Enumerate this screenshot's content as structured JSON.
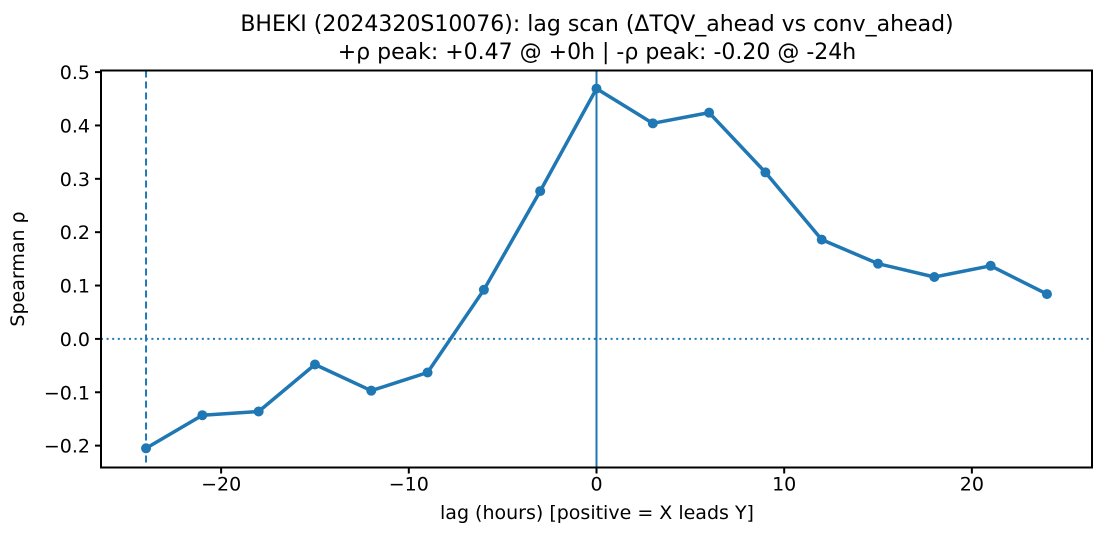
{
  "chart_data": {
    "type": "line",
    "title": "BHEKI (2024320S10076): lag scan (ΔTQV_ahead vs conv_ahead)",
    "subtitle": "+ρ peak: +0.47 @ +0h | -ρ peak: -0.20 @ -24h",
    "xlabel": "lag (hours) [positive = X leads Y]",
    "ylabel": "Spearman ρ",
    "series": [
      {
        "name": "spearman-rho-vs-lag",
        "x": [
          -24,
          -21,
          -18,
          -15,
          -12,
          -9,
          -6,
          -3,
          0,
          3,
          6,
          9,
          12,
          15,
          18,
          21,
          24
        ],
        "y": [
          -0.205,
          -0.143,
          -0.136,
          -0.048,
          -0.097,
          -0.063,
          0.092,
          0.277,
          0.469,
          0.404,
          0.424,
          0.312,
          0.186,
          0.141,
          0.116,
          0.137,
          0.084
        ]
      }
    ],
    "xlim": [
      -26.4,
      26.4
    ],
    "ylim": [
      -0.241,
      0.503
    ],
    "xticks": [
      {
        "v": -20,
        "label": "−20"
      },
      {
        "v": -10,
        "label": "−10"
      },
      {
        "v": 0,
        "label": "0"
      },
      {
        "v": 10,
        "label": "10"
      },
      {
        "v": 20,
        "label": "20"
      }
    ],
    "yticks": [
      {
        "v": -0.2,
        "label": "−0.2"
      },
      {
        "v": -0.1,
        "label": "−0.1"
      },
      {
        "v": 0.0,
        "label": "0.0"
      },
      {
        "v": 0.1,
        "label": "0.1"
      },
      {
        "v": 0.2,
        "label": "0.2"
      },
      {
        "v": 0.3,
        "label": "0.3"
      },
      {
        "v": 0.4,
        "label": "0.4"
      },
      {
        "v": 0.5,
        "label": "0.5"
      }
    ],
    "reference_lines": [
      {
        "name": "neg-peak-lag-vline",
        "type": "vline",
        "x": -24,
        "style": "dashed",
        "color": "#1f77b4"
      },
      {
        "name": "zero-lag-vline",
        "type": "vline",
        "x": 0,
        "style": "solid",
        "color": "#1f77b4"
      },
      {
        "name": "zero-rho-hline",
        "type": "hline",
        "y": 0,
        "style": "dotted",
        "color": "#1f77b4"
      }
    ],
    "grid": false,
    "legend": "none",
    "colors": {
      "series": "#1f77b4",
      "axes": "#000000",
      "background": "#ffffff"
    }
  }
}
